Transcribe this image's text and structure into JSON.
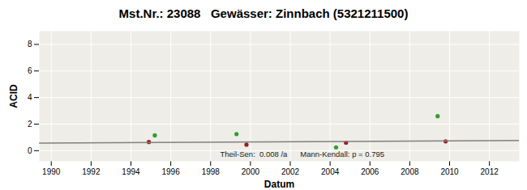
{
  "chart_data": {
    "type": "scatter",
    "title": "Mst.Nr.: 23088   Gewässer: Zinnbach (5321211500)",
    "x_label": "Datum",
    "y_label": "ACID",
    "xlim": [
      1989.4,
      2013.5
    ],
    "xticks": [
      1990,
      1992,
      1994,
      1996,
      1998,
      2000,
      2002,
      2004,
      2006,
      2008,
      2010,
      2012
    ],
    "ylim": [
      -0.8,
      9
    ],
    "yticks": [
      0,
      2,
      4,
      6,
      8
    ],
    "grid": true,
    "series": [
      {
        "type": "scatter",
        "marker": "circle",
        "color": "#2e9e2e",
        "x": [
          1995.2,
          1999.3,
          2004.3,
          2009.4
        ],
        "values": [
          1.15,
          1.25,
          0.25,
          2.6
        ]
      },
      {
        "type": "scatter",
        "marker": "circle",
        "color": "#9b1b1b",
        "x": [
          1994.9,
          1999.8,
          2004.8,
          2009.8
        ],
        "values": [
          0.65,
          0.45,
          0.6,
          0.7
        ]
      },
      {
        "type": "line",
        "line_style": "solid",
        "color": "#808080",
        "x": [
          1989.4,
          2013.5
        ],
        "values": [
          0.57,
          0.76
        ]
      }
    ],
    "annotations": [
      {
        "text": "Theil-Sen:  0.008 /a      Mann-Kendall: p = 0.795",
        "x": 2002.6,
        "y": -0.3
      }
    ]
  }
}
